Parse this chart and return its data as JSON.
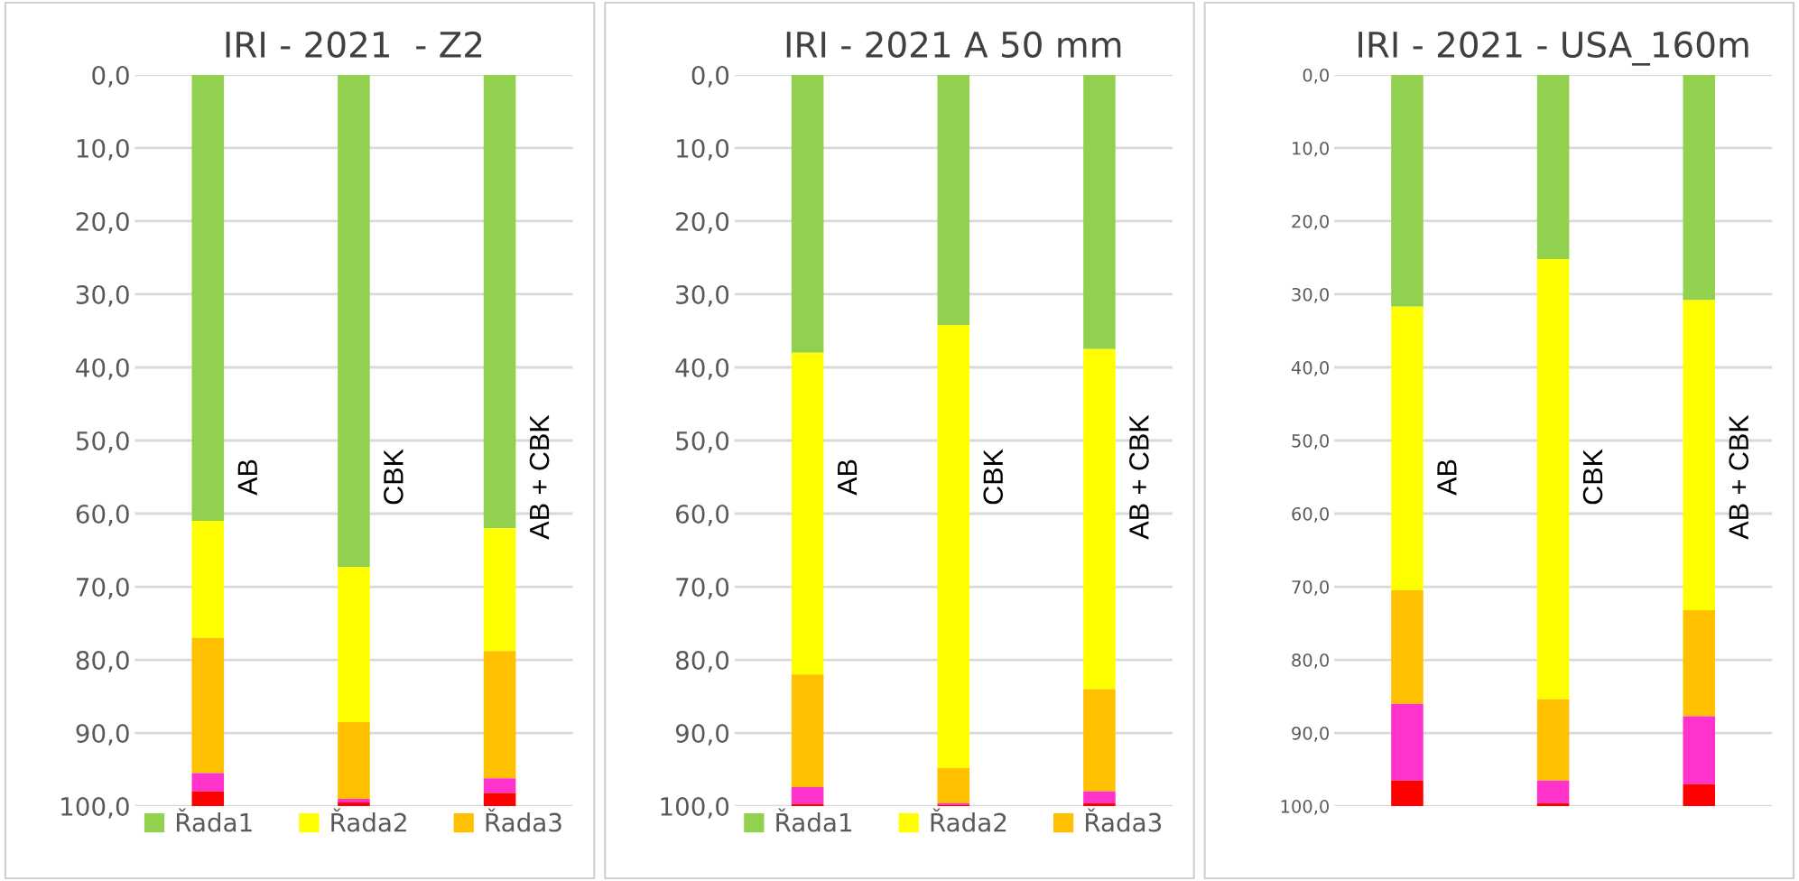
{
  "chart_data": [
    {
      "type": "bar",
      "title": "IRI - 2021  - Z2",
      "categories": [
        "AB",
        "CBK",
        "AB + CBK"
      ],
      "stacked": true,
      "ylim": [
        100,
        0
      ],
      "yticks": [
        {
          "value": 0,
          "label": "0,0"
        },
        {
          "value": 10,
          "label": "10,0"
        },
        {
          "value": 20,
          "label": "20,0"
        },
        {
          "value": 30,
          "label": "30,0"
        },
        {
          "value": 40,
          "label": "40,0"
        },
        {
          "value": 50,
          "label": "50,0"
        },
        {
          "value": 60,
          "label": "60,0"
        },
        {
          "value": 70,
          "label": "70,0"
        },
        {
          "value": 80,
          "label": "80,0"
        },
        {
          "value": 90,
          "label": "90,0"
        },
        {
          "value": 100,
          "label": "100,0"
        }
      ],
      "grid": "y",
      "legend": "bottom",
      "tick_labels": "y",
      "series": [
        {
          "name": "Řada1",
          "color": "#92d050",
          "values": [
            61,
            67.3,
            62
          ]
        },
        {
          "name": "Řada2",
          "color": "#ffff00",
          "values": [
            16,
            21.2,
            16.8
          ]
        },
        {
          "name": "Řada3",
          "color": "#ffc000",
          "values": [
            18.5,
            10.5,
            17.4
          ]
        },
        {
          "color": "#ff33cc",
          "values": [
            2.5,
            0.5,
            2
          ]
        },
        {
          "color": "#ff0000",
          "values": [
            2,
            0.5,
            1.8
          ]
        }
      ]
    },
    {
      "type": "bar",
      "title": "IRI - 2021 A 50 mm",
      "categories": [
        "AB",
        "CBK",
        "AB + CBK"
      ],
      "stacked": true,
      "ylim": [
        100,
        0
      ],
      "yticks": [
        {
          "value": 0,
          "label": "0,0"
        },
        {
          "value": 10,
          "label": "10,0"
        },
        {
          "value": 20,
          "label": "20,0"
        },
        {
          "value": 30,
          "label": "30,0"
        },
        {
          "value": 40,
          "label": "40,0"
        },
        {
          "value": 50,
          "label": "50,0"
        },
        {
          "value": 60,
          "label": "60,0"
        },
        {
          "value": 70,
          "label": "70,0"
        },
        {
          "value": 80,
          "label": "80,0"
        },
        {
          "value": 90,
          "label": "90,0"
        },
        {
          "value": 100,
          "label": "100,0"
        }
      ],
      "grid": "y",
      "legend": "bottom",
      "tick_labels": "y",
      "series": [
        {
          "name": "Řada1",
          "color": "#92d050",
          "values": [
            38,
            34.2,
            37.5
          ]
        },
        {
          "name": "Řada2",
          "color": "#ffff00",
          "values": [
            44,
            60.6,
            46.5
          ]
        },
        {
          "name": "Řada3",
          "color": "#ffc000",
          "values": [
            15.4,
            4.8,
            14
          ]
        },
        {
          "color": "#ff33cc",
          "values": [
            2.3,
            0.2,
            1.6
          ]
        },
        {
          "color": "#ff0000",
          "values": [
            0.3,
            0.2,
            0.4
          ]
        }
      ]
    },
    {
      "type": "bar",
      "title": "IRI - 2021 - USA_160m",
      "categories": [
        "AB",
        "CBK",
        "AB + CBK"
      ],
      "stacked": true,
      "ylim": [
        100,
        0
      ],
      "yticks": [
        {
          "value": 0,
          "label": "0,0"
        },
        {
          "value": 10,
          "label": "10,0"
        },
        {
          "value": 20,
          "label": "20,0"
        },
        {
          "value": 30,
          "label": "30,0"
        },
        {
          "value": 40,
          "label": "40,0"
        },
        {
          "value": 50,
          "label": "50,0"
        },
        {
          "value": 60,
          "label": "60,0"
        },
        {
          "value": 70,
          "label": "70,0"
        },
        {
          "value": 80,
          "label": "80,0"
        },
        {
          "value": 90,
          "label": "90,0"
        },
        {
          "value": 100,
          "label": "100,0"
        }
      ],
      "grid": "y",
      "tick_labels": "y",
      "series": [
        {
          "color": "#92d050",
          "values": [
            31.7,
            25.2,
            30.8
          ]
        },
        {
          "color": "#ffff00",
          "values": [
            38.8,
            60.2,
            42.4
          ]
        },
        {
          "color": "#ffc000",
          "values": [
            15.5,
            11.1,
            14.5
          ]
        },
        {
          "color": "#ff33cc",
          "values": [
            10.5,
            3.1,
            9.3
          ]
        },
        {
          "color": "#ff0000",
          "values": [
            3.5,
            0.4,
            3
          ]
        }
      ]
    }
  ]
}
